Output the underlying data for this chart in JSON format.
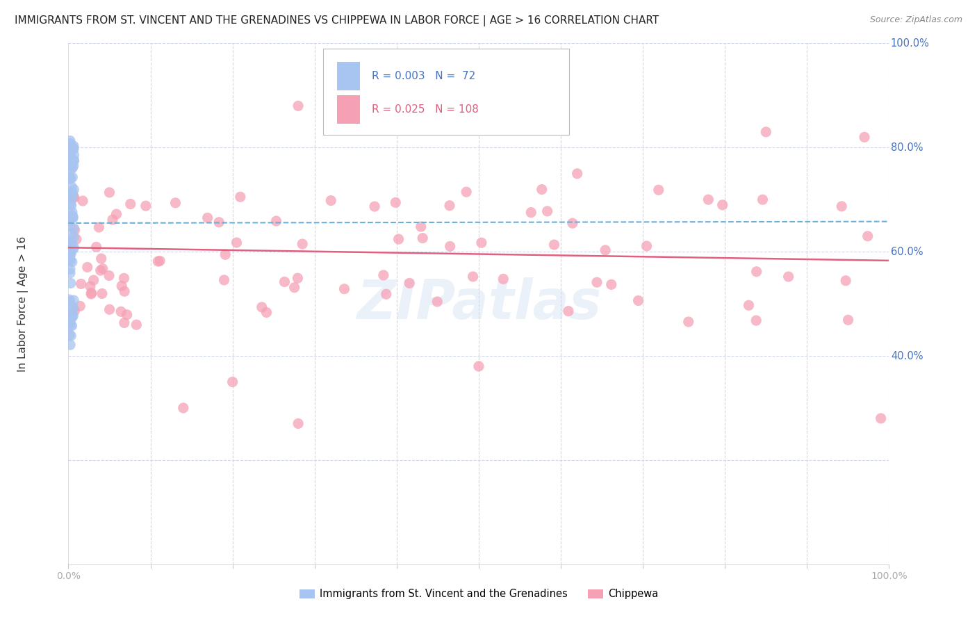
{
  "title": "IMMIGRANTS FROM ST. VINCENT AND THE GRENADINES VS CHIPPEWA IN LABOR FORCE | AGE > 16 CORRELATION CHART",
  "source": "Source: ZipAtlas.com",
  "ylabel": "In Labor Force | Age > 16",
  "xmin": 0.0,
  "xmax": 1.0,
  "ymin": 0.0,
  "ymax": 1.0,
  "legend_blue_R": "0.003",
  "legend_blue_N": "72",
  "legend_pink_R": "0.025",
  "legend_pink_N": "108",
  "blue_color": "#a8c4f0",
  "pink_color": "#f5a0b5",
  "blue_line_color": "#6baed6",
  "pink_line_color": "#e06080",
  "grid_color": "#d0d8e8",
  "title_color": "#222222",
  "source_color": "#888888",
  "axis_label_color": "#4472c4",
  "ylabel_color": "#333333",
  "watermark": "ZIPatlas",
  "blue_trend_start": 0.655,
  "blue_trend_end": 0.658,
  "pink_trend_start": 0.608,
  "pink_trend_end": 0.583
}
